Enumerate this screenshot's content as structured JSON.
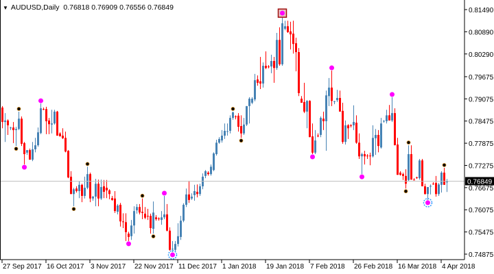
{
  "header": {
    "symbol": "AUDUSD,Daily",
    "ohlc": "0.76818 0.76909 0.76556 0.76849",
    "menu_icon": "triangle-down-icon"
  },
  "chart_data": {
    "type": "candlestick",
    "symbol": "AUDUSD",
    "timeframe": "Daily",
    "ylim": [
      0.74875,
      0.8149
    ],
    "y_ticks": [
      "0.81490",
      "0.80890",
      "0.80290",
      "0.79675",
      "0.79075",
      "0.78475",
      "0.77875",
      "0.77275",
      "0.76675",
      "0.76075",
      "0.75475",
      "0.74875"
    ],
    "x_ticks": [
      {
        "i": 0,
        "label": "27 Sep 2017"
      },
      {
        "i": 16,
        "label": "16 Oct 2017"
      },
      {
        "i": 32,
        "label": "3 Nov 2017"
      },
      {
        "i": 48,
        "label": "22 Nov 2017"
      },
      {
        "i": 64,
        "label": "11 Dec 2017"
      },
      {
        "i": 80,
        "label": "1 Jan 2018"
      },
      {
        "i": 96,
        "label": "19 Jan 2018"
      },
      {
        "i": 112,
        "label": "7 Feb 2018"
      },
      {
        "i": 128,
        "label": "26 Feb 2018"
      },
      {
        "i": 144,
        "label": "16 Mar 2018"
      },
      {
        "i": 160,
        "label": "4 Apr 2018"
      }
    ],
    "last_price": "0.76849",
    "colors": {
      "bull": "#4682B4",
      "bear": "#FF0000",
      "last_price_line": "#C0C0C0",
      "magenta_marker": "#FF00FF",
      "fractal": "#000000"
    },
    "grid": false,
    "ohlc": [
      [
        0.7884,
        0.7888,
        0.7828,
        0.7845
      ],
      [
        0.7845,
        0.7869,
        0.7791,
        0.7849
      ],
      [
        0.7849,
        0.7852,
        0.781,
        0.7836
      ],
      [
        0.7828,
        0.7832,
        0.7823,
        0.783
      ],
      [
        0.783,
        0.7845,
        0.7788,
        0.7823
      ],
      [
        0.7823,
        0.7832,
        0.778,
        0.7826
      ],
      [
        0.7826,
        0.7873,
        0.7823,
        0.7854
      ],
      [
        0.7854,
        0.786,
        0.778,
        0.7786
      ],
      [
        0.7788,
        0.7791,
        0.773,
        0.7758
      ],
      [
        0.7762,
        0.7769,
        0.7756,
        0.7769
      ],
      [
        0.7769,
        0.7773,
        0.7743,
        0.7743
      ],
      [
        0.7743,
        0.7791,
        0.7739,
        0.7771
      ],
      [
        0.7771,
        0.7802,
        0.7763,
        0.7782
      ],
      [
        0.7782,
        0.783,
        0.7778,
        0.7817
      ],
      [
        0.7815,
        0.7895,
        0.7812,
        0.7882
      ],
      [
        0.788,
        0.7884,
        0.7877,
        0.7878
      ],
      [
        0.788,
        0.7886,
        0.7812,
        0.7847
      ],
      [
        0.7849,
        0.7856,
        0.7812,
        0.7839
      ],
      [
        0.7838,
        0.7878,
        0.7814,
        0.7841
      ],
      [
        0.7841,
        0.7878,
        0.7838,
        0.7873
      ],
      [
        0.7873,
        0.7875,
        0.7808,
        0.7808
      ],
      [
        0.7814,
        0.7817,
        0.7806,
        0.7806
      ],
      [
        0.7808,
        0.7828,
        0.7799,
        0.7801
      ],
      [
        0.7802,
        0.7819,
        0.7763,
        0.7765
      ],
      [
        0.7767,
        0.7769,
        0.7693,
        0.7695
      ],
      [
        0.7697,
        0.7712,
        0.765,
        0.765
      ],
      [
        0.765,
        0.7667,
        0.7617,
        0.7663
      ],
      [
        0.7665,
        0.7671,
        0.7654,
        0.7658
      ],
      [
        0.7658,
        0.7684,
        0.7639,
        0.7675
      ],
      [
        0.7675,
        0.7678,
        0.7628,
        0.7645
      ],
      [
        0.7645,
        0.7697,
        0.7638,
        0.7667
      ],
      [
        0.7667,
        0.7724,
        0.7663,
        0.7704
      ],
      [
        0.7704,
        0.7708,
        0.7628,
        0.7638
      ],
      [
        0.7638,
        0.7645,
        0.7632,
        0.7643
      ],
      [
        0.7643,
        0.7691,
        0.7617,
        0.7678
      ],
      [
        0.7678,
        0.7689,
        0.7617,
        0.7638
      ],
      [
        0.7638,
        0.7689,
        0.7634,
        0.7669
      ],
      [
        0.7671,
        0.7688,
        0.7639,
        0.7656
      ],
      [
        0.7667,
        0.7688,
        0.7639,
        0.766
      ],
      [
        0.766,
        0.7663,
        0.7636,
        0.765
      ],
      [
        0.7639,
        0.7645,
        0.7632,
        0.7634
      ],
      [
        0.7638,
        0.7658,
        0.7599,
        0.7604
      ],
      [
        0.7602,
        0.7623,
        0.7595,
        0.7619
      ],
      [
        0.7621,
        0.7626,
        0.7562,
        0.7576
      ],
      [
        0.7576,
        0.7598,
        0.7558,
        0.7574
      ],
      [
        0.7574,
        0.7598,
        0.7523,
        0.7547
      ],
      [
        0.7543,
        0.7548,
        0.7523,
        0.7534
      ],
      [
        0.7536,
        0.758,
        0.7526,
        0.7565
      ],
      [
        0.7565,
        0.7617,
        0.7543,
        0.7604
      ],
      [
        0.7606,
        0.7623,
        0.7597,
        0.7615
      ],
      [
        0.7615,
        0.7623,
        0.7595,
        0.76
      ],
      [
        0.7602,
        0.7638,
        0.7582,
        0.7599
      ],
      [
        0.7597,
        0.7615,
        0.7582,
        0.7586
      ],
      [
        0.7591,
        0.761,
        0.758,
        0.7589
      ],
      [
        0.7591,
        0.7597,
        0.7543,
        0.7558
      ],
      [
        0.7556,
        0.763,
        0.7543,
        0.76
      ],
      [
        0.7587,
        0.7593,
        0.7578,
        0.7582
      ],
      [
        0.7584,
        0.7587,
        0.7578,
        0.7583
      ],
      [
        0.758,
        0.7604,
        0.7567,
        0.7587
      ],
      [
        0.7587,
        0.7645,
        0.7582,
        0.7595
      ],
      [
        0.7595,
        0.7623,
        0.7549,
        0.7551
      ],
      [
        0.7551,
        0.756,
        0.7497,
        0.7499
      ],
      [
        0.7501,
        0.7523,
        0.7493,
        0.7502
      ],
      [
        0.7499,
        0.7523,
        0.7493,
        0.7515
      ],
      [
        0.7515,
        0.7571,
        0.7508,
        0.7536
      ],
      [
        0.7534,
        0.7591,
        0.7526,
        0.7578
      ],
      [
        0.7578,
        0.7625,
        0.7574,
        0.7621
      ],
      [
        0.7621,
        0.7665,
        0.7615,
        0.7649
      ],
      [
        0.7649,
        0.7686,
        0.7626,
        0.7634
      ],
      [
        0.7638,
        0.7652,
        0.7634,
        0.7643
      ],
      [
        0.7647,
        0.7675,
        0.7632,
        0.7658
      ],
      [
        0.7656,
        0.7676,
        0.7641,
        0.765
      ],
      [
        0.765,
        0.7678,
        0.7645,
        0.7671
      ],
      [
        0.7671,
        0.7706,
        0.7663,
        0.7697
      ],
      [
        0.7699,
        0.7715,
        0.7693,
        0.7712
      ],
      [
        0.7708,
        0.7712,
        0.77,
        0.7704
      ],
      [
        0.7704,
        0.773,
        0.77,
        0.7724
      ],
      [
        0.7715,
        0.7763,
        0.7712,
        0.776
      ],
      [
        0.7758,
        0.7797,
        0.7754,
        0.7789
      ],
      [
        0.7789,
        0.7804,
        0.7786,
        0.7799
      ],
      [
        0.7795,
        0.7823,
        0.7789,
        0.7808
      ],
      [
        0.7808,
        0.7841,
        0.7799,
        0.7821
      ],
      [
        0.7819,
        0.7841,
        0.7808,
        0.782
      ],
      [
        0.7821,
        0.7863,
        0.7814,
        0.7856
      ],
      [
        0.7856,
        0.7873,
        0.7851,
        0.7871
      ],
      [
        0.786,
        0.7863,
        0.7852,
        0.7859
      ],
      [
        0.7862,
        0.7869,
        0.7819,
        0.7832
      ],
      [
        0.7834,
        0.7863,
        0.7802,
        0.7814
      ],
      [
        0.7814,
        0.7856,
        0.781,
        0.7838
      ],
      [
        0.7838,
        0.7888,
        0.7834,
        0.7888
      ],
      [
        0.7888,
        0.7912,
        0.7841,
        0.7908
      ],
      [
        0.7897,
        0.7912,
        0.7893,
        0.7908
      ],
      [
        0.7906,
        0.7975,
        0.7901,
        0.7958
      ],
      [
        0.796,
        0.7971,
        0.7943,
        0.7951
      ],
      [
        0.7955,
        0.8021,
        0.7934,
        0.7949
      ],
      [
        0.7949,
        0.8006,
        0.7938,
        0.7997
      ],
      [
        0.7997,
        0.8036,
        0.7988,
        0.7991
      ],
      [
        0.7995,
        0.7999,
        0.799,
        0.7994
      ],
      [
        0.7995,
        0.8027,
        0.7977,
        0.801
      ],
      [
        0.801,
        0.8021,
        0.7951,
        0.7991
      ],
      [
        0.7991,
        0.8086,
        0.7986,
        0.8067
      ],
      [
        0.8067,
        0.8101,
        0.7997,
        0.8001
      ],
      [
        0.8001,
        0.8132,
        0.7997,
        0.8112
      ],
      [
        0.8097,
        0.8119,
        0.8093,
        0.8104
      ],
      [
        0.8104,
        0.8119,
        0.8086,
        0.8088
      ],
      [
        0.809,
        0.8116,
        0.8041,
        0.8082
      ],
      [
        0.8084,
        0.8119,
        0.803,
        0.8056
      ],
      [
        0.8058,
        0.8073,
        0.7982,
        0.8034
      ],
      [
        0.8034,
        0.8045,
        0.7915,
        0.7923
      ],
      [
        0.7908,
        0.7915,
        0.7897,
        0.7897
      ],
      [
        0.7899,
        0.7951,
        0.7869,
        0.7873
      ],
      [
        0.7873,
        0.7904,
        0.7828,
        0.7902
      ],
      [
        0.7902,
        0.7904,
        0.7804,
        0.7804
      ],
      [
        0.7806,
        0.7841,
        0.7758,
        0.7762
      ],
      [
        0.7762,
        0.7823,
        0.7758,
        0.7795
      ],
      [
        0.7808,
        0.7814,
        0.7804,
        0.7807
      ],
      [
        0.781,
        0.786,
        0.7804,
        0.7856
      ],
      [
        0.7854,
        0.7873,
        0.7823,
        0.7847
      ],
      [
        0.7847,
        0.793,
        0.7767,
        0.7917
      ],
      [
        0.7915,
        0.7964,
        0.7888,
        0.7938
      ],
      [
        0.7938,
        0.7984,
        0.7888,
        0.7902
      ],
      [
        0.79,
        0.7902,
        0.7893,
        0.7901
      ],
      [
        0.7904,
        0.7932,
        0.7899,
        0.791
      ],
      [
        0.791,
        0.793,
        0.7873,
        0.7873
      ],
      [
        0.7875,
        0.7897,
        0.7786,
        0.7791
      ],
      [
        0.7791,
        0.7849,
        0.7784,
        0.7836
      ],
      [
        0.7836,
        0.7839,
        0.7799,
        0.7828
      ],
      [
        0.7836,
        0.7839,
        0.783,
        0.7835
      ],
      [
        0.7836,
        0.789,
        0.7823,
        0.7845
      ],
      [
        0.7843,
        0.7863,
        0.7786,
        0.7789
      ],
      [
        0.7789,
        0.7814,
        0.7745,
        0.7752
      ],
      [
        0.7752,
        0.7762,
        0.7704,
        0.7758
      ],
      [
        0.7758,
        0.7767,
        0.773,
        0.7752
      ],
      [
        0.7754,
        0.7758,
        0.7745,
        0.7753
      ],
      [
        0.7754,
        0.7762,
        0.7728,
        0.7753
      ],
      [
        0.7752,
        0.7836,
        0.7749,
        0.7802
      ],
      [
        0.7801,
        0.7826,
        0.7756,
        0.781
      ],
      [
        0.781,
        0.7823,
        0.7763,
        0.778
      ],
      [
        0.7776,
        0.7856,
        0.7773,
        0.7841
      ],
      [
        0.7847,
        0.785,
        0.7843,
        0.7848
      ],
      [
        0.7847,
        0.7878,
        0.7841,
        0.7863
      ],
      [
        0.7863,
        0.7891,
        0.7849,
        0.7849
      ],
      [
        0.7849,
        0.7912,
        0.7845,
        0.7869
      ],
      [
        0.7869,
        0.7882,
        0.7782,
        0.7782
      ],
      [
        0.7784,
        0.7802,
        0.7702,
        0.7702
      ],
      [
        0.7708,
        0.7712,
        0.77,
        0.7702
      ],
      [
        0.7704,
        0.7708,
        0.7688,
        0.7699
      ],
      [
        0.7699,
        0.7717,
        0.7665,
        0.7678
      ],
      [
        0.7688,
        0.7782,
        0.7684,
        0.7758
      ],
      [
        0.7758,
        0.7782,
        0.7689,
        0.7689
      ],
      [
        0.7689,
        0.7693,
        0.7687,
        0.7688
      ],
      [
        0.7695,
        0.7697,
        0.7691,
        0.7694
      ],
      [
        0.7693,
        0.7745,
        0.7689,
        0.7741
      ],
      [
        0.7741,
        0.7745,
        0.7671,
        0.7671
      ],
      [
        0.7671,
        0.7678,
        0.7649,
        0.765
      ],
      [
        0.765,
        0.7667,
        0.7634,
        0.7669
      ],
      [
        0.7671,
        0.7676,
        0.7649,
        0.7672
      ],
      [
        0.7678,
        0.7682,
        0.7675,
        0.7677
      ],
      [
        0.768,
        0.7699,
        0.7643,
        0.765
      ],
      [
        0.765,
        0.768,
        0.7645,
        0.7676
      ],
      [
        0.7675,
        0.7712,
        0.7654,
        0.7708
      ],
      [
        0.7708,
        0.7721,
        0.7675,
        0.7675
      ],
      [
        0.76818,
        0.76909,
        0.76556,
        0.76849
      ]
    ],
    "markers": [
      {
        "i": 5,
        "type": "fractal",
        "side": "low"
      },
      {
        "i": 6,
        "type": "fractal",
        "side": "high"
      },
      {
        "i": 26,
        "type": "fractal",
        "side": "low"
      },
      {
        "i": 31,
        "type": "fractal",
        "side": "high"
      },
      {
        "i": 51,
        "type": "fractal",
        "side": "high"
      },
      {
        "i": 55,
        "type": "fractal",
        "side": "low"
      },
      {
        "i": 84,
        "type": "fractal",
        "side": "high"
      },
      {
        "i": 87,
        "type": "fractal",
        "side": "low"
      },
      {
        "i": 147,
        "type": "fractal",
        "side": "low"
      },
      {
        "i": 148,
        "type": "fractal",
        "side": "high"
      },
      {
        "i": 161,
        "type": "fractal",
        "side": "high"
      },
      {
        "i": 8,
        "type": "dot",
        "side": "low"
      },
      {
        "i": 14,
        "type": "dot",
        "side": "high"
      },
      {
        "i": 46,
        "type": "dot",
        "side": "low"
      },
      {
        "i": 59,
        "type": "dot",
        "side": "high"
      },
      {
        "i": 62,
        "type": "star",
        "side": "low"
      },
      {
        "i": 102,
        "type": "boxed",
        "side": "high"
      },
      {
        "i": 113,
        "type": "dot",
        "side": "low"
      },
      {
        "i": 120,
        "type": "dot",
        "side": "high"
      },
      {
        "i": 131,
        "type": "dot",
        "side": "low"
      },
      {
        "i": 142,
        "type": "dot",
        "side": "high"
      },
      {
        "i": 155,
        "type": "star",
        "side": "low"
      }
    ]
  }
}
